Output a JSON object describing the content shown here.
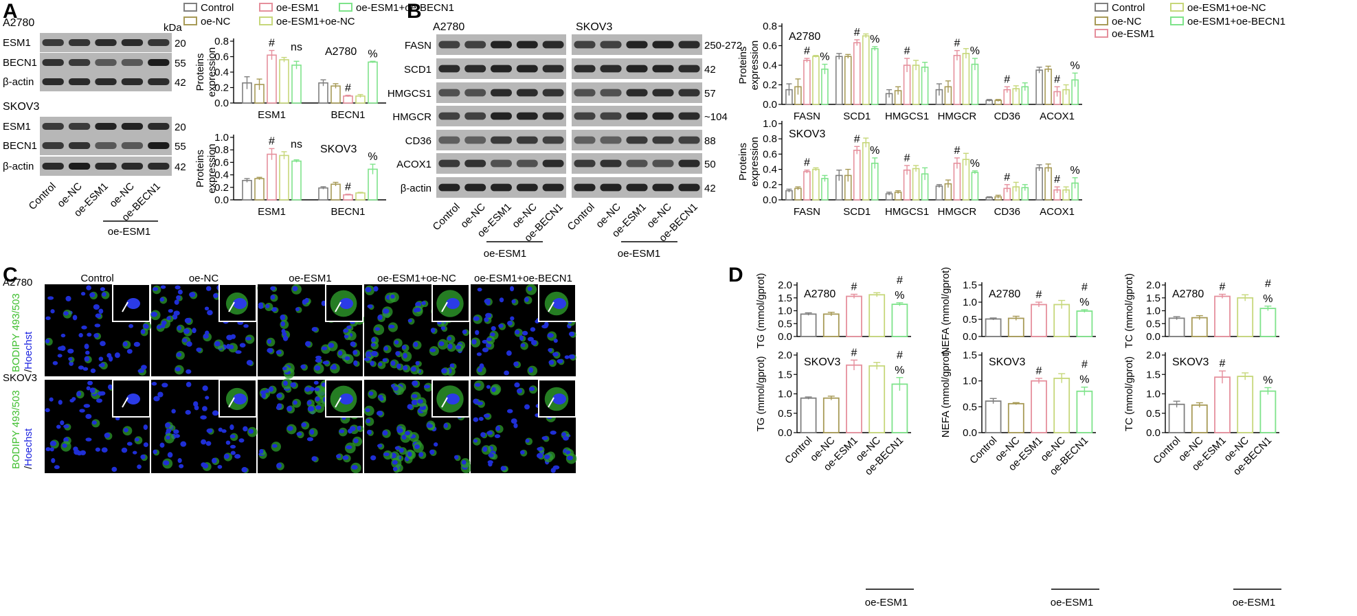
{
  "panels": {
    "A": "A",
    "B": "B",
    "C": "C",
    "D": "D"
  },
  "legend": {
    "A": [
      "Control",
      "oe-NC",
      "oe-ESM1",
      "oe-ESM1+oe-NC",
      "oe-ESM1+oe-BECN1"
    ],
    "B": [
      "Control",
      "oe-NC",
      "oe-ESM1",
      "oe-ESM1+oe-NC",
      "oe-ESM1+oe-BECN1"
    ]
  },
  "colors": {
    "groups": [
      "#7f7f7f",
      "#a79a56",
      "#e58f9c",
      "#c6d77a",
      "#7ee38a"
    ]
  },
  "blotA": {
    "kDa": "kDa",
    "sections": [
      {
        "cell": "A2780",
        "rows": [
          [
            "ESM1",
            "20"
          ],
          [
            "BECN1",
            "55"
          ],
          [
            "β-actin",
            "42"
          ]
        ]
      },
      {
        "cell": "SKOV3",
        "rows": [
          [
            "ESM1",
            "20"
          ],
          [
            "BECN1",
            "55"
          ],
          [
            "β-actin",
            "42"
          ]
        ]
      }
    ],
    "lanes": [
      "Control",
      "oe-NC",
      "oe-ESM1",
      "oe-NC",
      "oe-BECN1"
    ],
    "group": "oe-ESM1"
  },
  "blotB": {
    "cells": [
      "A2780",
      "SKOV3"
    ],
    "rows": [
      [
        "FASN",
        "250-272"
      ],
      [
        "SCD1",
        "42"
      ],
      [
        "HMGCS1",
        "57"
      ],
      [
        "HMGCR",
        "~104"
      ],
      [
        "CD36",
        "88"
      ],
      [
        "ACOX1",
        "50"
      ],
      [
        "β-actin",
        "42"
      ]
    ],
    "lanes": [
      "Control",
      "oe-NC",
      "oe-ESM1",
      "oe-NC",
      "oe-BECN1"
    ],
    "group": "oe-ESM1"
  },
  "micro": {
    "cols": [
      "Control",
      "oe-NC",
      "oe-ESM1",
      "oe-ESM1+oe-NC",
      "oe-ESM1+oe-BECN1"
    ],
    "rows": [
      "A2780",
      "SKOV3"
    ],
    "stain_green": "BODIPY 493/503",
    "stain_blue": "Hoechst",
    "stain_sep": "/"
  },
  "chart_data": [
    {
      "type": "bar",
      "id": "A_top",
      "title": "A2780",
      "ylabel": "Proteins expression",
      "ylim": [
        0,
        0.8
      ],
      "yticks": [
        "0.0",
        "0.2",
        "0.4",
        "0.6",
        "0.8"
      ],
      "categories": [
        "ESM1",
        "BECN1"
      ],
      "series": [
        {
          "name": "Control",
          "values": [
            0.26,
            0.26
          ]
        },
        {
          "name": "oe-NC",
          "values": [
            0.24,
            0.22
          ]
        },
        {
          "name": "oe-ESM1",
          "values": [
            0.62,
            0.09
          ]
        },
        {
          "name": "oe-ESM1+oe-NC",
          "values": [
            0.56,
            0.09
          ]
        },
        {
          "name": "oe-ESM1+oe-BECN1",
          "values": [
            0.49,
            0.53
          ]
        }
      ],
      "errors": [
        [
          0.08,
          0.04
        ],
        [
          0.07,
          0.03
        ],
        [
          0.06,
          0.01
        ],
        [
          0.03,
          0.02
        ],
        [
          0.05,
          0.01
        ]
      ],
      "annotations": [
        "#",
        "ns",
        "#",
        "%"
      ]
    },
    {
      "type": "bar",
      "id": "A_bot",
      "title": "SKOV3",
      "ylabel": "Proteins expression",
      "ylim": [
        0,
        1.0
      ],
      "yticks": [
        "0.0",
        "0.2",
        "0.4",
        "0.6",
        "0.8",
        "1.0"
      ],
      "categories": [
        "ESM1",
        "BECN1"
      ],
      "series": [
        {
          "name": "Control",
          "values": [
            0.31,
            0.19
          ]
        },
        {
          "name": "oe-NC",
          "values": [
            0.34,
            0.25
          ]
        },
        {
          "name": "oe-ESM1",
          "values": [
            0.73,
            0.08
          ]
        },
        {
          "name": "oe-ESM1+oe-NC",
          "values": [
            0.71,
            0.11
          ]
        },
        {
          "name": "oe-ESM1+oe-BECN1",
          "values": [
            0.62,
            0.49
          ]
        }
      ],
      "errors": [
        [
          0.03,
          0.02
        ],
        [
          0.02,
          0.03
        ],
        [
          0.09,
          0.01
        ],
        [
          0.06,
          0.01
        ],
        [
          0.02,
          0.08
        ]
      ],
      "annotations": [
        "#",
        "ns",
        "#",
        "%"
      ]
    },
    {
      "type": "bar",
      "id": "B_top",
      "title": "A2780",
      "ylabel": "Proteins expression",
      "ylim": [
        0,
        0.8
      ],
      "yticks": [
        "0.0",
        "0.2",
        "0.4",
        "0.6",
        "0.8"
      ],
      "categories": [
        "FASN",
        "SCD1",
        "HMGCS1",
        "HMGCR",
        "CD36",
        "ACOX1"
      ],
      "series": [
        {
          "name": "Control",
          "values": [
            0.15,
            0.49,
            0.11,
            0.15,
            0.04,
            0.35
          ]
        },
        {
          "name": "oe-NC",
          "values": [
            0.18,
            0.49,
            0.14,
            0.18,
            0.04,
            0.36
          ]
        },
        {
          "name": "oe-ESM1",
          "values": [
            0.45,
            0.63,
            0.4,
            0.5,
            0.15,
            0.13
          ]
        },
        {
          "name": "oe-ESM1+oe-NC",
          "values": [
            0.49,
            0.7,
            0.4,
            0.52,
            0.16,
            0.15
          ]
        },
        {
          "name": "oe-ESM1+oe-BECN1",
          "values": [
            0.36,
            0.57,
            0.38,
            0.41,
            0.18,
            0.25
          ]
        }
      ],
      "errors": [
        [
          0.06,
          0.03,
          0.04,
          0.06,
          0.01,
          0.03
        ],
        [
          0.08,
          0.02,
          0.04,
          0.06,
          0.01,
          0.03
        ],
        [
          0.02,
          0.03,
          0.07,
          0.05,
          0.03,
          0.05
        ],
        [
          0.01,
          0.02,
          0.05,
          0.05,
          0.03,
          0.05
        ],
        [
          0.05,
          0.02,
          0.05,
          0.06,
          0.04,
          0.07
        ]
      ],
      "annotations": [
        "#",
        "%",
        "#",
        "%",
        "#",
        "#",
        "%",
        "#",
        "#",
        "%"
      ]
    },
    {
      "type": "bar",
      "id": "B_bot",
      "title": "SKOV3",
      "ylabel": "Proteins expression",
      "ylim": [
        0,
        1.0
      ],
      "yticks": [
        "0.0",
        "0.2",
        "0.4",
        "0.6",
        "0.8",
        "1.0"
      ],
      "categories": [
        "FASN",
        "SCD1",
        "HMGCS1",
        "HMGCR",
        "CD36",
        "ACOX1"
      ],
      "series": [
        {
          "name": "Control",
          "values": [
            0.12,
            0.32,
            0.08,
            0.18,
            0.03,
            0.42
          ]
        },
        {
          "name": "oe-NC",
          "values": [
            0.15,
            0.32,
            0.1,
            0.21,
            0.04,
            0.42
          ]
        },
        {
          "name": "oe-ESM1",
          "values": [
            0.37,
            0.65,
            0.39,
            0.48,
            0.15,
            0.13
          ]
        },
        {
          "name": "oe-ESM1+oe-NC",
          "values": [
            0.4,
            0.75,
            0.41,
            0.53,
            0.17,
            0.13
          ]
        },
        {
          "name": "oe-ESM1+oe-BECN1",
          "values": [
            0.28,
            0.48,
            0.34,
            0.36,
            0.16,
            0.22
          ]
        }
      ],
      "errors": [
        [
          0.02,
          0.07,
          0.02,
          0.02,
          0.01,
          0.04
        ],
        [
          0.02,
          0.08,
          0.02,
          0.05,
          0.02,
          0.05
        ],
        [
          0.02,
          0.05,
          0.06,
          0.07,
          0.05,
          0.04
        ],
        [
          0.02,
          0.06,
          0.04,
          0.08,
          0.06,
          0.04
        ],
        [
          0.04,
          0.07,
          0.08,
          0.02,
          0.04,
          0.07
        ]
      ],
      "annotations": [
        "#",
        "#",
        "%",
        "#",
        "#",
        "%",
        "#",
        "#",
        "%"
      ]
    },
    {
      "type": "bar",
      "id": "D_TG_A",
      "title": "A2780",
      "ylabel": "TG (mmol/gprot)",
      "ylim": [
        0,
        2.0
      ],
      "yticks": [
        "0.0",
        "0.5",
        "1.0",
        "1.5",
        "2.0"
      ],
      "categories": [
        "Control",
        "oe-NC",
        "oe-ESM1",
        "oe-NC",
        "oe-BECN1"
      ],
      "values": [
        0.87,
        0.87,
        1.56,
        1.62,
        1.25
      ],
      "errors": [
        0.05,
        0.07,
        0.08,
        0.08,
        0.06
      ],
      "annotations": [
        "#",
        "#",
        "%"
      ]
    },
    {
      "type": "bar",
      "id": "D_NEFA_A",
      "title": "A2780",
      "ylabel": "NEFA (mmol/gprot)",
      "ylim": [
        0,
        1.5
      ],
      "yticks": [
        "0.0",
        "0.5",
        "1.0",
        "1.5"
      ],
      "categories": [
        "Control",
        "oe-NC",
        "oe-ESM1",
        "oe-NC",
        "oe-BECN1"
      ],
      "values": [
        0.51,
        0.53,
        0.93,
        0.93,
        0.74
      ],
      "errors": [
        0.03,
        0.06,
        0.07,
        0.12,
        0.04
      ],
      "annotations": [
        "#",
        "#",
        "%"
      ]
    },
    {
      "type": "bar",
      "id": "D_TC_A",
      "title": "A2780",
      "ylabel": "TC (mmol/gprot)",
      "ylim": [
        0,
        2.0
      ],
      "yticks": [
        "0.0",
        "0.5",
        "1.0",
        "1.5",
        "2.0"
      ],
      "categories": [
        "Control",
        "oe-NC",
        "oe-ESM1",
        "oe-NC",
        "oe-BECN1"
      ],
      "values": [
        0.71,
        0.73,
        1.56,
        1.5,
        1.09
      ],
      "errors": [
        0.06,
        0.08,
        0.08,
        0.12,
        0.09
      ],
      "annotations": [
        "#",
        "#",
        "%"
      ]
    },
    {
      "type": "bar",
      "id": "D_TG_S",
      "title": "SKOV3",
      "ylabel": "TG (mmol/gprot)",
      "ylim": [
        0,
        2.0
      ],
      "yticks": [
        "0.0",
        "0.5",
        "1.0",
        "1.5",
        "2.0"
      ],
      "categories": [
        "Control",
        "oe-NC",
        "oe-ESM1",
        "oe-NC",
        "oe-BECN1"
      ],
      "values": [
        0.89,
        0.89,
        1.74,
        1.72,
        1.25
      ],
      "errors": [
        0.03,
        0.05,
        0.13,
        0.09,
        0.17
      ],
      "annotations": [
        "#",
        "#",
        "%"
      ]
    },
    {
      "type": "bar",
      "id": "D_NEFA_S",
      "title": "SKOV3",
      "ylabel": "NEFA (mmol/gprot)",
      "ylim": [
        0,
        1.5
      ],
      "yticks": [
        "0.0",
        "0.5",
        "1.0",
        "1.5"
      ],
      "categories": [
        "Control",
        "oe-NC",
        "oe-ESM1",
        "oe-NC",
        "oe-BECN1"
      ],
      "values": [
        0.61,
        0.56,
        1.0,
        1.05,
        0.8
      ],
      "errors": [
        0.05,
        0.02,
        0.05,
        0.09,
        0.08
      ],
      "annotations": [
        "#",
        "#",
        "%"
      ]
    },
    {
      "type": "bar",
      "id": "D_TC_S",
      "title": "SKOV3",
      "ylabel": "TC (mmol/gprot)",
      "ylim": [
        0,
        2.0
      ],
      "yticks": [
        "0.0",
        "0.5",
        "1.0",
        "1.5",
        "2.0"
      ],
      "categories": [
        "Control",
        "oe-NC",
        "oe-ESM1",
        "oe-NC",
        "oe-BECN1"
      ],
      "values": [
        0.73,
        0.71,
        1.43,
        1.45,
        1.07
      ],
      "errors": [
        0.08,
        0.06,
        0.16,
        0.09,
        0.09
      ],
      "annotations": [
        "#",
        "%"
      ]
    }
  ],
  "D_group": "oe-ESM1"
}
